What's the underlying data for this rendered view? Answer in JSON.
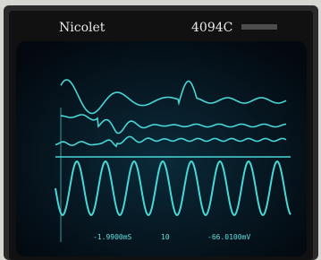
{
  "header": {
    "brand": "Nicolet",
    "model": "4094C"
  },
  "readout": {
    "time": "-1.9900mS",
    "channel": "10",
    "voltage": "-66.0100mV"
  }
}
